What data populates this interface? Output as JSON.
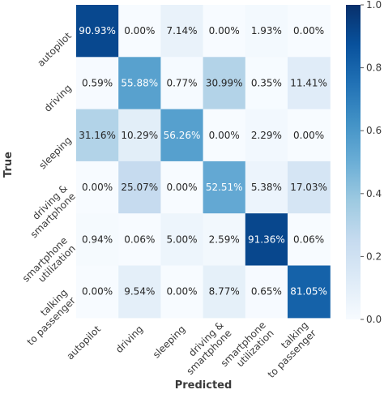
{
  "chart_data": {
    "type": "heatmap",
    "title": "",
    "xlabel": "Predicted",
    "ylabel": "True",
    "x_categories": [
      [
        "autopilot"
      ],
      [
        "driving"
      ],
      [
        "sleeping"
      ],
      [
        "driving &",
        "smartphone"
      ],
      [
        "smartphone",
        "utilization"
      ],
      [
        "talking",
        "to passenger"
      ]
    ],
    "y_categories": [
      [
        "autopilot"
      ],
      [
        "driving"
      ],
      [
        "sleeping"
      ],
      [
        "driving &",
        "smartphone"
      ],
      [
        "smartphone",
        "utilization"
      ],
      [
        "talking",
        "to passenger"
      ]
    ],
    "values": [
      [
        0.9093,
        0.0,
        0.0714,
        0.0,
        0.0193,
        0.0
      ],
      [
        0.0059,
        0.5588,
        0.0077,
        0.3099,
        0.0035,
        0.1141
      ],
      [
        0.3116,
        0.1029,
        0.5626,
        0.0,
        0.0229,
        0.0
      ],
      [
        0.0,
        0.2507,
        0.0,
        0.5251,
        0.0538,
        0.1703
      ],
      [
        0.0094,
        0.0006,
        0.05,
        0.0259,
        0.9136,
        0.0006
      ],
      [
        0.0,
        0.0954,
        0.0,
        0.0877,
        0.0065,
        0.8105
      ]
    ],
    "cell_labels": [
      [
        "90.93%",
        "0.00%",
        "7.14%",
        "0.00%",
        "1.93%",
        "0.00%"
      ],
      [
        "0.59%",
        "55.88%",
        "0.77%",
        "30.99%",
        "0.35%",
        "11.41%"
      ],
      [
        "31.16%",
        "10.29%",
        "56.26%",
        "0.00%",
        "2.29%",
        "0.00%"
      ],
      [
        "0.00%",
        "25.07%",
        "0.00%",
        "52.51%",
        "5.38%",
        "17.03%"
      ],
      [
        "0.94%",
        "0.06%",
        "5.00%",
        "2.59%",
        "91.36%",
        "0.06%"
      ],
      [
        "0.00%",
        "9.54%",
        "0.00%",
        "8.77%",
        "0.65%",
        "81.05%"
      ]
    ],
    "colormap": "Blues",
    "vmin": 0.0,
    "vmax": 1.0,
    "colorbar_ticks": [
      "0.0",
      "0.2",
      "0.4",
      "0.6",
      "0.8",
      "1.0"
    ],
    "grid": false
  }
}
